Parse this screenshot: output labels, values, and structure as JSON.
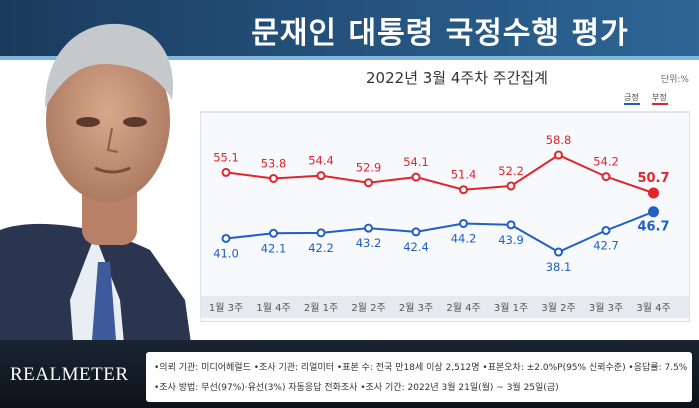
{
  "header": {
    "title": "문재인 대통령 국정수행 평가"
  },
  "subtitle": "2022년 3월 4주차 주간집계",
  "unit": "단위:%",
  "logo": "REALMETER",
  "notes": {
    "line1": "•의뢰 기관: 미디어헤럴드 •조사 기관: 리얼미터 •표본 수: 전국 만18세 이상 2,512명 •표본오차: ±2.0%P(95% 신뢰수준) •응답률: 7.5%",
    "line2": "•조사 방법: 무선(97%)·유선(3%) 자동응답 전화조사 •조사 기간: 2022년 3월 21일(월) ~ 3월 25일(금)"
  },
  "chart_data": {
    "type": "line",
    "categories": [
      "1월 3주",
      "1월 4주",
      "2월 1주",
      "2월 2주",
      "2월 3주",
      "2월 4주",
      "3월 1주",
      "3월 2주",
      "3월 3주",
      "3월 4주"
    ],
    "series": [
      {
        "name": "부정",
        "color": "#e2252c",
        "values": [
          55.1,
          53.8,
          54.4,
          52.9,
          54.1,
          51.4,
          52.2,
          58.8,
          54.2,
          50.7
        ]
      },
      {
        "name": "긍정",
        "color": "#1f5fc6",
        "values": [
          41.0,
          42.1,
          42.2,
          43.2,
          42.4,
          44.2,
          43.9,
          38.1,
          42.7,
          46.7
        ]
      }
    ],
    "legend": "top-right",
    "ylim": [
      30,
      65
    ],
    "grid": false
  },
  "colors": {
    "positive": "#1f5fc6",
    "negative": "#e2252c",
    "header_bg": "#23507a"
  }
}
